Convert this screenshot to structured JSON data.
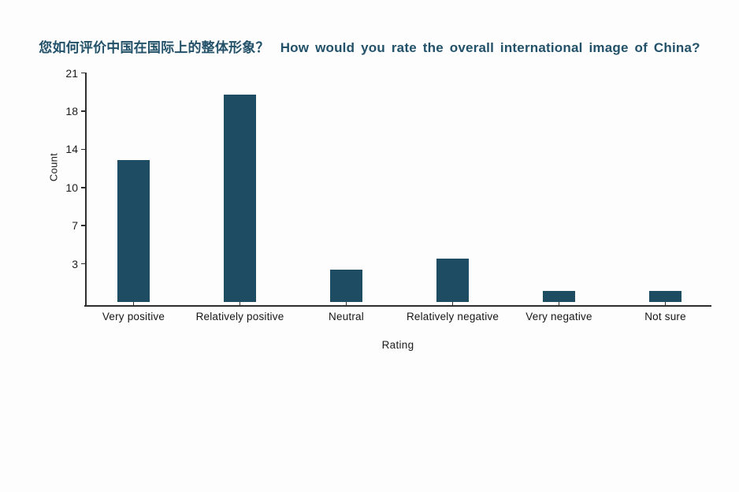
{
  "title": {
    "zh": "您如何评价中国在国际上的整体形象？",
    "en": "How would you rate the overall international image of China?"
  },
  "chart_data": {
    "type": "bar",
    "title": "您如何评价中国在国际上的整体形象？  How would you rate the overall international image of China?",
    "xlabel": "Rating",
    "ylabel": "Count",
    "categories": [
      "Very positive",
      "Relatively positive",
      "Neutral",
      "Relatively negative",
      "Very negative",
      "Not sure"
    ],
    "values": [
      13,
      19,
      3,
      4,
      1,
      1
    ],
    "ylim": [
      0,
      21
    ],
    "yticks": [
      {
        "label": "3",
        "value": 3.5
      },
      {
        "label": "7",
        "value": 7
      },
      {
        "label": "10",
        "value": 10.5
      },
      {
        "label": "14",
        "value": 14
      },
      {
        "label": "18",
        "value": 17.5
      },
      {
        "label": "21",
        "value": 21
      }
    ],
    "grid": false,
    "legend": null
  },
  "colors": {
    "bar": "#1e4c63",
    "title": "#225169",
    "axis": "#2e2e2e",
    "background": "#fdfdfd"
  }
}
